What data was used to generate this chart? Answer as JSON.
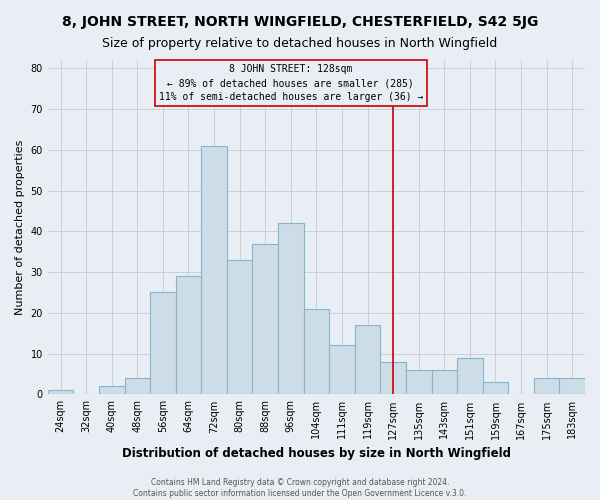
{
  "title": "8, JOHN STREET, NORTH WINGFIELD, CHESTERFIELD, S42 5JG",
  "subtitle": "Size of property relative to detached houses in North Wingfield",
  "xlabel": "Distribution of detached houses by size in North Wingfield",
  "ylabel": "Number of detached properties",
  "footer1": "Contains HM Land Registry data © Crown copyright and database right 2024.",
  "footer2": "Contains public sector information licensed under the Open Government Licence v.3.0.",
  "bar_labels": [
    "24sqm",
    "32sqm",
    "40sqm",
    "48sqm",
    "56sqm",
    "64sqm",
    "72sqm",
    "80sqm",
    "88sqm",
    "96sqm",
    "104sqm",
    "111sqm",
    "119sqm",
    "127sqm",
    "135sqm",
    "143sqm",
    "151sqm",
    "159sqm",
    "167sqm",
    "175sqm",
    "183sqm"
  ],
  "bar_values": [
    1,
    0,
    2,
    4,
    25,
    29,
    61,
    33,
    37,
    42,
    21,
    12,
    17,
    8,
    6,
    6,
    9,
    3,
    0,
    4,
    4
  ],
  "bar_color": "#ccdde8",
  "bar_edge_color": "#8ab4cc",
  "vline_x_index": 13,
  "vline_color": "#cc0000",
  "annotation_title": "8 JOHN STREET: 128sqm",
  "annotation_line1": "← 89% of detached houses are smaller (285)",
  "annotation_line2": "11% of semi-detached houses are larger (36) →",
  "ylim": [
    0,
    82
  ],
  "yticks": [
    0,
    10,
    20,
    30,
    40,
    50,
    60,
    70,
    80
  ],
  "grid_color": "#c8d0da",
  "background_color": "#e8eef4",
  "title_fontsize": 10,
  "subtitle_fontsize": 9,
  "xlabel_fontsize": 8.5,
  "ylabel_fontsize": 8,
  "tick_fontsize": 7,
  "footer_fontsize": 5.5
}
